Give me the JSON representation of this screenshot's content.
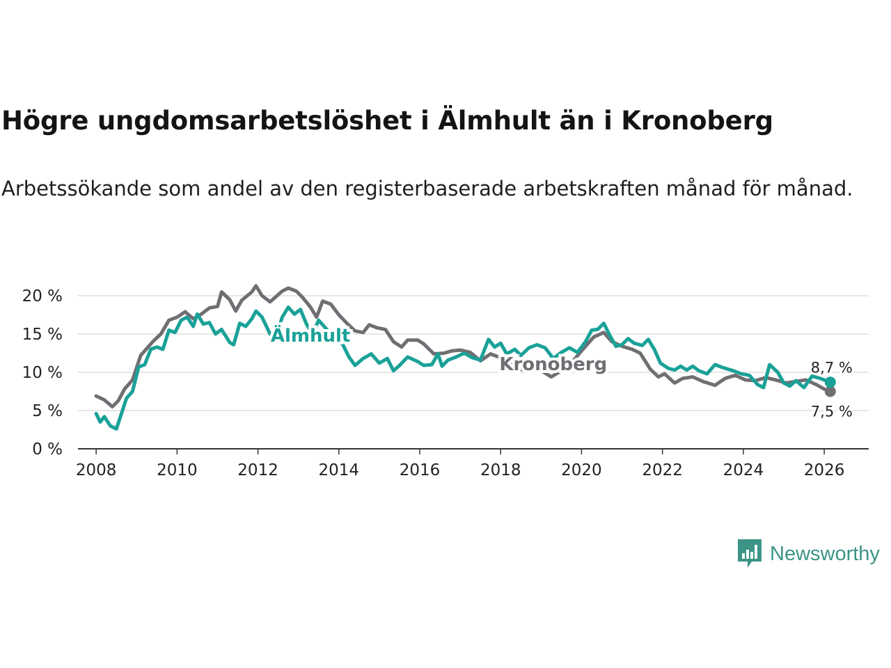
{
  "header": {
    "title": "Högre ungdomsarbetslöshet i Älmhult än i Kronoberg",
    "subtitle": "Arbetssökande som andel av den registerbaserade arbetskraften månad för månad."
  },
  "branding": {
    "name": "Newsworthy",
    "color": "#3c9486"
  },
  "chart_data": {
    "type": "line",
    "title": "Högre ungdomsarbetslöshet i Älmhult än i Kronoberg",
    "xlabel": "",
    "ylabel": "",
    "xlim": [
      2007.55,
      2027.1
    ],
    "ylim": [
      0,
      20
    ],
    "x_ticks": [
      2008,
      2010,
      2012,
      2014,
      2016,
      2018,
      2020,
      2022,
      2024,
      2026
    ],
    "x_tick_labels": [
      "2008",
      "2010",
      "2012",
      "2014",
      "2016",
      "2018",
      "2020",
      "2022",
      "2024",
      "2026"
    ],
    "y_ticks": [
      0,
      5,
      10,
      15,
      20
    ],
    "y_tick_labels": [
      "0 %",
      "5 %",
      "10 %",
      "15 %",
      "20 %"
    ],
    "grid": true,
    "series": [
      {
        "name": "Kronoberg",
        "label": "Kronoberg",
        "color": "#706e73",
        "end_label": "7,5 %",
        "points": [
          [
            2008.0,
            6.9
          ],
          [
            2008.2,
            6.4
          ],
          [
            2008.4,
            5.5
          ],
          [
            2008.55,
            6.3
          ],
          [
            2008.7,
            7.8
          ],
          [
            2008.9,
            9.0
          ],
          [
            2009.1,
            12.2
          ],
          [
            2009.4,
            14.0
          ],
          [
            2009.6,
            15.0
          ],
          [
            2009.8,
            16.8
          ],
          [
            2010.0,
            17.2
          ],
          [
            2010.2,
            17.9
          ],
          [
            2010.4,
            17.0
          ],
          [
            2010.6,
            17.6
          ],
          [
            2010.8,
            18.4
          ],
          [
            2011.0,
            18.6
          ],
          [
            2011.1,
            20.5
          ],
          [
            2011.3,
            19.5
          ],
          [
            2011.45,
            18.0
          ],
          [
            2011.6,
            19.4
          ],
          [
            2011.85,
            20.5
          ],
          [
            2011.95,
            21.3
          ],
          [
            2012.1,
            20.0
          ],
          [
            2012.3,
            19.2
          ],
          [
            2012.45,
            19.9
          ],
          [
            2012.6,
            20.6
          ],
          [
            2012.75,
            21.0
          ],
          [
            2012.95,
            20.6
          ],
          [
            2013.1,
            19.8
          ],
          [
            2013.3,
            18.5
          ],
          [
            2013.45,
            17.2
          ],
          [
            2013.6,
            19.3
          ],
          [
            2013.8,
            18.9
          ],
          [
            2014.0,
            17.5
          ],
          [
            2014.2,
            16.4
          ],
          [
            2014.4,
            15.4
          ],
          [
            2014.6,
            15.2
          ],
          [
            2014.75,
            16.2
          ],
          [
            2014.95,
            15.8
          ],
          [
            2015.15,
            15.6
          ],
          [
            2015.35,
            14.0
          ],
          [
            2015.55,
            13.3
          ],
          [
            2015.7,
            14.2
          ],
          [
            2015.95,
            14.2
          ],
          [
            2016.1,
            13.7
          ],
          [
            2016.35,
            12.4
          ],
          [
            2016.6,
            12.5
          ],
          [
            2016.8,
            12.8
          ],
          [
            2017.0,
            12.9
          ],
          [
            2017.25,
            12.6
          ],
          [
            2017.5,
            11.5
          ],
          [
            2017.75,
            12.4
          ],
          [
            2017.95,
            12.0
          ],
          [
            2018.2,
            11.2
          ],
          [
            2018.45,
            10.2
          ],
          [
            2018.7,
            10.8
          ],
          [
            2018.95,
            10.4
          ],
          [
            2019.25,
            9.4
          ],
          [
            2019.5,
            10.2
          ],
          [
            2019.75,
            11.2
          ],
          [
            2020.0,
            12.8
          ],
          [
            2020.3,
            14.6
          ],
          [
            2020.55,
            15.2
          ],
          [
            2020.75,
            14.0
          ],
          [
            2021.0,
            13.4
          ],
          [
            2021.25,
            13.0
          ],
          [
            2021.45,
            12.5
          ],
          [
            2021.7,
            10.4
          ],
          [
            2021.9,
            9.4
          ],
          [
            2022.05,
            9.8
          ],
          [
            2022.3,
            8.6
          ],
          [
            2022.5,
            9.2
          ],
          [
            2022.75,
            9.4
          ],
          [
            2023.0,
            8.8
          ],
          [
            2023.3,
            8.3
          ],
          [
            2023.55,
            9.2
          ],
          [
            2023.8,
            9.6
          ],
          [
            2024.05,
            9.0
          ],
          [
            2024.3,
            8.9
          ],
          [
            2024.55,
            9.3
          ],
          [
            2024.8,
            9.0
          ],
          [
            2025.05,
            8.6
          ],
          [
            2025.3,
            8.8
          ],
          [
            2025.55,
            9.0
          ],
          [
            2025.8,
            8.4
          ],
          [
            2026.0,
            7.8
          ],
          [
            2026.15,
            7.5
          ]
        ]
      },
      {
        "name": "Älmhult",
        "label": "Älmhult",
        "color": "#1aa198",
        "end_label": "8,7 %",
        "points": [
          [
            2008.0,
            4.6
          ],
          [
            2008.1,
            3.5
          ],
          [
            2008.2,
            4.2
          ],
          [
            2008.35,
            3.0
          ],
          [
            2008.5,
            2.6
          ],
          [
            2008.65,
            5.0
          ],
          [
            2008.75,
            6.6
          ],
          [
            2008.9,
            7.5
          ],
          [
            2009.05,
            10.7
          ],
          [
            2009.2,
            11.0
          ],
          [
            2009.35,
            13.0
          ],
          [
            2009.5,
            13.3
          ],
          [
            2009.65,
            13.0
          ],
          [
            2009.8,
            15.5
          ],
          [
            2009.95,
            15.2
          ],
          [
            2010.1,
            16.8
          ],
          [
            2010.25,
            17.2
          ],
          [
            2010.4,
            16.0
          ],
          [
            2010.5,
            17.6
          ],
          [
            2010.65,
            16.3
          ],
          [
            2010.8,
            16.5
          ],
          [
            2010.95,
            15.0
          ],
          [
            2011.1,
            15.6
          ],
          [
            2011.3,
            13.9
          ],
          [
            2011.4,
            13.6
          ],
          [
            2011.55,
            16.4
          ],
          [
            2011.7,
            16.0
          ],
          [
            2011.85,
            17.0
          ],
          [
            2011.95,
            18.0
          ],
          [
            2012.1,
            17.2
          ],
          [
            2012.3,
            15.0
          ],
          [
            2012.45,
            14.6
          ],
          [
            2012.6,
            17.2
          ],
          [
            2012.75,
            18.5
          ],
          [
            2012.9,
            17.6
          ],
          [
            2013.05,
            18.2
          ],
          [
            2013.2,
            16.3
          ],
          [
            2013.35,
            15.0
          ],
          [
            2013.5,
            16.8
          ],
          [
            2013.7,
            15.6
          ],
          [
            2013.9,
            14.6
          ],
          [
            2014.1,
            13.6
          ],
          [
            2014.25,
            12.0
          ],
          [
            2014.4,
            10.9
          ],
          [
            2014.6,
            11.8
          ],
          [
            2014.8,
            12.4
          ],
          [
            2015.0,
            11.2
          ],
          [
            2015.2,
            11.8
          ],
          [
            2015.35,
            10.2
          ],
          [
            2015.5,
            10.9
          ],
          [
            2015.7,
            12.0
          ],
          [
            2015.95,
            11.4
          ],
          [
            2016.1,
            10.9
          ],
          [
            2016.3,
            11.0
          ],
          [
            2016.45,
            12.4
          ],
          [
            2016.55,
            10.8
          ],
          [
            2016.7,
            11.6
          ],
          [
            2016.9,
            12.0
          ],
          [
            2017.1,
            12.5
          ],
          [
            2017.3,
            11.9
          ],
          [
            2017.5,
            11.6
          ],
          [
            2017.7,
            14.3
          ],
          [
            2017.85,
            13.3
          ],
          [
            2018.0,
            13.8
          ],
          [
            2018.15,
            12.4
          ],
          [
            2018.35,
            13.0
          ],
          [
            2018.5,
            12.2
          ],
          [
            2018.7,
            13.2
          ],
          [
            2018.9,
            13.6
          ],
          [
            2019.1,
            13.2
          ],
          [
            2019.3,
            11.8
          ],
          [
            2019.5,
            12.6
          ],
          [
            2019.7,
            13.2
          ],
          [
            2019.9,
            12.6
          ],
          [
            2020.1,
            14.0
          ],
          [
            2020.25,
            15.5
          ],
          [
            2020.4,
            15.6
          ],
          [
            2020.55,
            16.4
          ],
          [
            2020.7,
            14.8
          ],
          [
            2020.85,
            13.4
          ],
          [
            2021.0,
            13.6
          ],
          [
            2021.15,
            14.4
          ],
          [
            2021.3,
            13.8
          ],
          [
            2021.5,
            13.5
          ],
          [
            2021.65,
            14.3
          ],
          [
            2021.8,
            13.0
          ],
          [
            2021.95,
            11.2
          ],
          [
            2022.15,
            10.5
          ],
          [
            2022.3,
            10.3
          ],
          [
            2022.45,
            10.8
          ],
          [
            2022.6,
            10.3
          ],
          [
            2022.75,
            10.8
          ],
          [
            2022.9,
            10.2
          ],
          [
            2023.1,
            9.8
          ],
          [
            2023.3,
            11.0
          ],
          [
            2023.5,
            10.6
          ],
          [
            2023.75,
            10.2
          ],
          [
            2023.95,
            9.8
          ],
          [
            2024.15,
            9.6
          ],
          [
            2024.35,
            8.4
          ],
          [
            2024.5,
            8.0
          ],
          [
            2024.65,
            11.0
          ],
          [
            2024.85,
            10.0
          ],
          [
            2025.0,
            8.6
          ],
          [
            2025.15,
            8.2
          ],
          [
            2025.3,
            8.9
          ],
          [
            2025.5,
            8.0
          ],
          [
            2025.7,
            9.5
          ],
          [
            2025.9,
            9.2
          ],
          [
            2026.05,
            8.9
          ],
          [
            2026.15,
            8.7
          ]
        ]
      }
    ]
  }
}
